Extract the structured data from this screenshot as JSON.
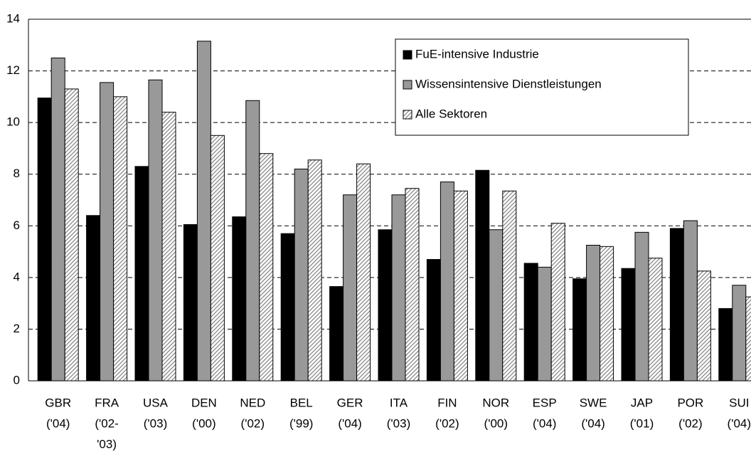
{
  "chart_data": {
    "type": "bar",
    "categories": [
      [
        "GBR",
        "('04)"
      ],
      [
        "FRA",
        "('02-",
        "'03)"
      ],
      [
        "USA",
        "('03)"
      ],
      [
        "DEN",
        "('00)"
      ],
      [
        "NED",
        "('02)"
      ],
      [
        "BEL",
        "('99)"
      ],
      [
        "GER",
        "('04)"
      ],
      [
        "ITA",
        "('03)"
      ],
      [
        "FIN",
        "('02)"
      ],
      [
        "NOR",
        "('00)"
      ],
      [
        "ESP",
        "('04)"
      ],
      [
        "SWE",
        "('04)"
      ],
      [
        "JAP",
        "('01)"
      ],
      [
        "POR",
        "('02)"
      ],
      [
        "SUI",
        "('04)"
      ]
    ],
    "series": [
      {
        "name": "FuE-intensive Industrie",
        "color": "#000000",
        "values": [
          10.95,
          6.4,
          8.3,
          6.05,
          6.35,
          5.7,
          3.65,
          5.85,
          4.7,
          8.15,
          4.55,
          3.95,
          4.35,
          5.9,
          2.8
        ]
      },
      {
        "name": "Wissensintensive Dienstleistungen",
        "color": "#999999",
        "values": [
          12.5,
          11.55,
          11.65,
          13.15,
          10.85,
          8.2,
          7.2,
          7.2,
          7.7,
          5.85,
          4.4,
          5.25,
          5.75,
          6.2,
          3.7
        ]
      },
      {
        "name": "Alle Sektoren",
        "color": "#808080",
        "pattern": "diagonal-hatch",
        "values": [
          11.3,
          11.0,
          10.4,
          9.5,
          8.8,
          8.55,
          8.4,
          7.45,
          7.35,
          7.35,
          6.1,
          5.2,
          4.75,
          4.25,
          3.25
        ]
      }
    ],
    "ylim": [
      0,
      14
    ],
    "yticks": [
      0,
      2,
      4,
      6,
      8,
      10,
      12,
      14
    ],
    "grid": true
  }
}
